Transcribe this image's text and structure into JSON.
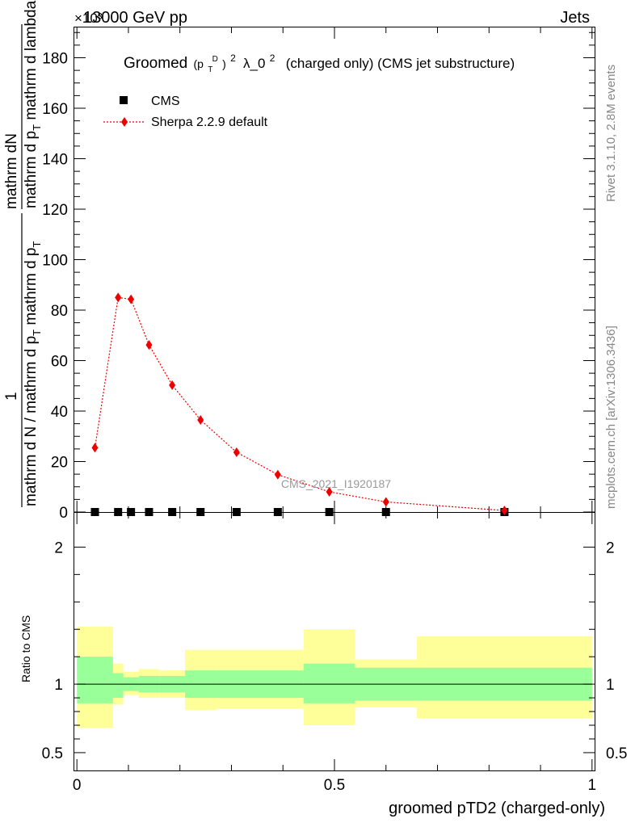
{
  "header": {
    "energy_label": "13000 GeV pp",
    "process_label": "Jets",
    "exponent_label": "×10³",
    "rivet_label": "Rivet 3.1.10,  2.8M events",
    "site_label": "mcplots.cern.ch [arXiv:1306.3436]",
    "analysis_label": "CMS_2021_I1920187"
  },
  "title": {
    "prefix": "Groomed",
    "p": "(p",
    "t_sub": "T",
    "d_sup": "D",
    "close": ")",
    "sq": "2",
    "lambda": "λ_0",
    "lambda_sup": "2",
    "suffix": "(charged only) (CMS jet substructure)"
  },
  "legend": {
    "cms": "CMS",
    "sherpa": "Sherpa 2.2.9 default"
  },
  "ylabel_top": {
    "num": "mathrm dN",
    "den": "mathrm d p_T mathrm d lambda",
    "den_main": "mathrm d p",
    "den_sub": "T",
    "den_tail": " mathrm d lambda"
  },
  "ylabel_bottom": {
    "num": "1",
    "den": "mathrm d N / mathrm d p_T mathrm d p_T",
    "den_a": "mathrm d N / mathrm d p",
    "den_sub1": "T",
    "den_b": " mathrm d p",
    "den_sub2": "T"
  },
  "ratio_ylabel": "Ratio to CMS",
  "xlabel": "groomed pTD2 (charged-only)",
  "chart_data": {
    "type": "line",
    "main_panel": {
      "ylim": [
        0,
        192
      ],
      "y_multiplier": 1000,
      "yticks": [
        0,
        20,
        40,
        60,
        80,
        100,
        120,
        140,
        160,
        180
      ],
      "ytick_labels": [
        "0",
        "20",
        "40",
        "60",
        "80",
        "100",
        "120",
        "140",
        "160",
        "180"
      ],
      "xlim": [
        -0.005,
        1.005
      ],
      "series": [
        {
          "name": "CMS",
          "marker": "square",
          "color": "#000000",
          "x": [
            0.035,
            0.08,
            0.105,
            0.14,
            0.185,
            0.24,
            0.31,
            0.39,
            0.49,
            0.6,
            0.83
          ],
          "y": [
            0,
            0,
            0,
            0,
            0,
            0,
            0,
            0,
            0,
            0,
            0
          ]
        },
        {
          "name": "Sherpa 2.2.9 default",
          "marker": "diamond",
          "line": "dotted",
          "color": "#ee0000",
          "x": [
            0.035,
            0.08,
            0.105,
            0.14,
            0.185,
            0.24,
            0.31,
            0.39,
            0.49,
            0.6,
            0.83
          ],
          "y": [
            25.5,
            85,
            84.3,
            66.2,
            50.3,
            36.5,
            23.7,
            14.8,
            8.0,
            4.0,
            0.6
          ]
        }
      ]
    },
    "ratio_panel": {
      "ylim": [
        0.37,
        2.25
      ],
      "yticks": [
        0.5,
        1,
        2
      ],
      "ytick_labels": [
        "0.5",
        "1",
        "2"
      ],
      "minor_ticks": [
        0.6,
        0.7,
        0.8,
        0.9,
        1.2,
        1.4,
        1.6,
        1.8
      ],
      "reference": 1,
      "bands": [
        {
          "x0": 0.0,
          "x1": 0.07,
          "stat_lo": 0.86,
          "stat_hi": 1.2,
          "tot_lo": 0.68,
          "tot_hi": 1.42
        },
        {
          "x0": 0.07,
          "x1": 0.09,
          "stat_lo": 0.9,
          "stat_hi": 1.08,
          "tot_lo": 0.85,
          "tot_hi": 1.15
        },
        {
          "x0": 0.09,
          "x1": 0.12,
          "stat_lo": 0.95,
          "stat_hi": 1.05,
          "tot_lo": 0.92,
          "tot_hi": 1.09
        },
        {
          "x0": 0.12,
          "x1": 0.16,
          "stat_lo": 0.94,
          "stat_hi": 1.06,
          "tot_lo": 0.9,
          "tot_hi": 1.11
        },
        {
          "x0": 0.16,
          "x1": 0.21,
          "stat_lo": 0.94,
          "stat_hi": 1.06,
          "tot_lo": 0.9,
          "tot_hi": 1.1
        },
        {
          "x0": 0.21,
          "x1": 0.27,
          "stat_lo": 0.9,
          "stat_hi": 1.1,
          "tot_lo": 0.81,
          "tot_hi": 1.25
        },
        {
          "x0": 0.27,
          "x1": 0.44,
          "stat_lo": 0.9,
          "stat_hi": 1.1,
          "tot_lo": 0.82,
          "tot_hi": 1.25
        },
        {
          "x0": 0.44,
          "x1": 0.54,
          "stat_lo": 0.86,
          "stat_hi": 1.15,
          "tot_lo": 0.7,
          "tot_hi": 1.4
        },
        {
          "x0": 0.54,
          "x1": 0.66,
          "stat_lo": 0.88,
          "stat_hi": 1.12,
          "tot_lo": 0.83,
          "tot_hi": 1.18
        },
        {
          "x0": 0.66,
          "x1": 1.0,
          "stat_lo": 0.88,
          "stat_hi": 1.12,
          "tot_lo": 0.75,
          "tot_hi": 1.35
        }
      ]
    },
    "xticks": [
      0,
      0.5,
      1
    ],
    "xtick_labels": [
      "0",
      "0.5",
      "1"
    ],
    "x_minor_ticks": [
      0.1,
      0.2,
      0.3,
      0.4,
      0.6,
      0.7,
      0.8,
      0.9
    ],
    "colors": {
      "stat_band": "#99ff99",
      "total_band": "#ffff99"
    }
  }
}
